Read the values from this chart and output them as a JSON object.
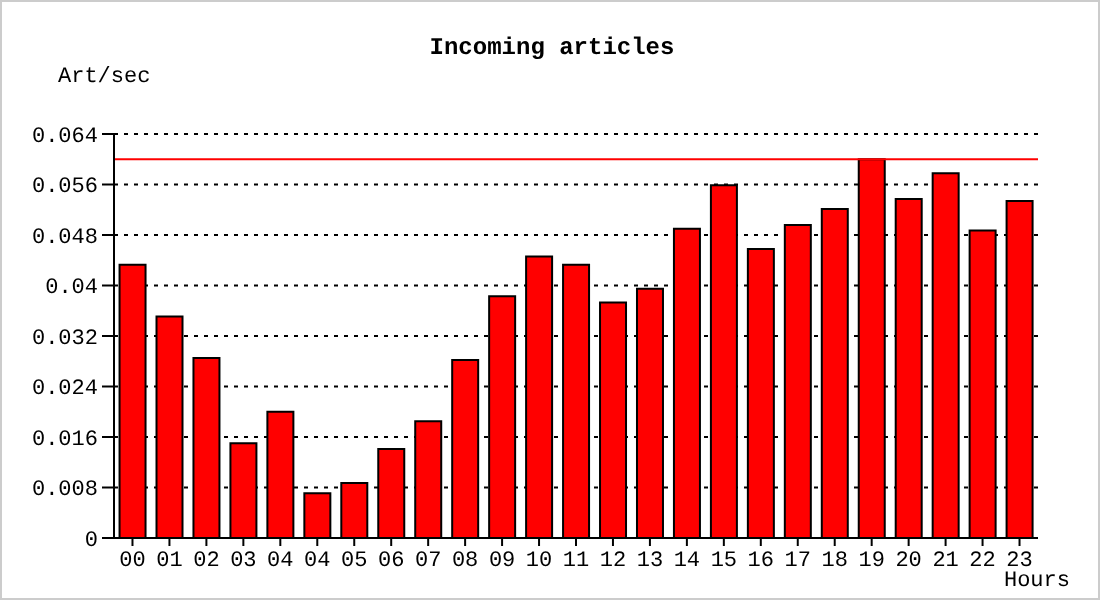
{
  "chart_data": {
    "type": "bar",
    "title": "Incoming articles",
    "xlabel": "Hours",
    "ylabel": "Art/sec",
    "categories": [
      "00",
      "01",
      "02",
      "03",
      "04",
      "04",
      "05",
      "06",
      "07",
      "08",
      "09",
      "10",
      "11",
      "12",
      "13",
      "14",
      "15",
      "16",
      "17",
      "18",
      "19",
      "20",
      "21",
      "22",
      "23"
    ],
    "values": [
      0.0433,
      0.0351,
      0.0285,
      0.015,
      0.02,
      0.0071,
      0.0087,
      0.0141,
      0.0185,
      0.0282,
      0.0383,
      0.0446,
      0.0433,
      0.0373,
      0.0395,
      0.049,
      0.0559,
      0.0458,
      0.0496,
      0.0521,
      0.06,
      0.0537,
      0.0578,
      0.0487,
      0.0534
    ],
    "color": "#ff0000",
    "ylim": [
      0,
      0.064
    ],
    "yticks": [
      0,
      0.008,
      0.016,
      0.024,
      0.032,
      0.04,
      0.048,
      0.056,
      0.064
    ],
    "grid": "y",
    "ref_lines": [
      {
        "axis": "y",
        "value": 0.06,
        "color": "#ff0000"
      }
    ]
  }
}
